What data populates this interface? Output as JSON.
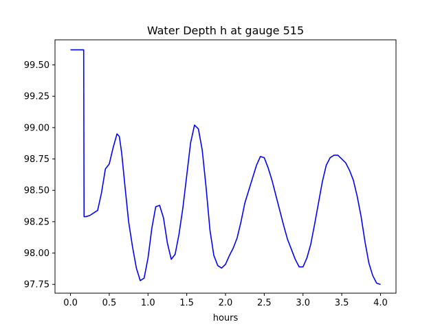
{
  "chart_data": {
    "type": "line",
    "title": "Water Depth h at gauge 515",
    "xlabel": "hours",
    "ylabel": "",
    "xlim": [
      -0.2,
      4.2
    ],
    "ylim": [
      97.68,
      99.7
    ],
    "grid": false,
    "x_ticks": [
      0.0,
      0.5,
      1.0,
      1.5,
      2.0,
      2.5,
      3.0,
      3.5,
      4.0
    ],
    "x_tick_labels": [
      "0.0",
      "0.5",
      "1.0",
      "1.5",
      "2.0",
      "2.5",
      "3.0",
      "3.5",
      "4.0"
    ],
    "y_ticks": [
      97.75,
      98.0,
      98.25,
      98.5,
      98.75,
      99.0,
      99.25,
      99.5
    ],
    "y_tick_labels": [
      "97.75",
      "98.00",
      "98.25",
      "98.50",
      "98.75",
      "99.00",
      "99.25",
      "99.50"
    ],
    "series": [
      {
        "color": "#0000ff",
        "x": [
          0.0,
          0.17,
          0.175,
          0.2,
          0.25,
          0.3,
          0.35,
          0.4,
          0.45,
          0.5,
          0.55,
          0.6,
          0.63,
          0.66,
          0.7,
          0.75,
          0.8,
          0.85,
          0.9,
          0.95,
          1.0,
          1.05,
          1.1,
          1.15,
          1.2,
          1.25,
          1.3,
          1.35,
          1.4,
          1.45,
          1.5,
          1.55,
          1.6,
          1.65,
          1.7,
          1.75,
          1.8,
          1.85,
          1.9,
          1.95,
          2.0,
          2.05,
          2.1,
          2.15,
          2.2,
          2.25,
          2.3,
          2.35,
          2.4,
          2.45,
          2.5,
          2.55,
          2.6,
          2.65,
          2.7,
          2.75,
          2.8,
          2.85,
          2.9,
          2.95,
          3.0,
          3.05,
          3.1,
          3.15,
          3.2,
          3.25,
          3.3,
          3.35,
          3.4,
          3.45,
          3.5,
          3.55,
          3.6,
          3.65,
          3.7,
          3.75,
          3.8,
          3.85,
          3.9,
          3.95,
          4.0
        ],
        "y": [
          99.62,
          99.62,
          98.29,
          98.29,
          98.3,
          98.32,
          98.34,
          98.48,
          98.67,
          98.71,
          98.84,
          98.95,
          98.93,
          98.8,
          98.55,
          98.25,
          98.05,
          97.88,
          97.78,
          97.8,
          97.96,
          98.2,
          98.37,
          98.38,
          98.28,
          98.08,
          97.95,
          97.99,
          98.15,
          98.36,
          98.62,
          98.88,
          99.02,
          98.99,
          98.82,
          98.52,
          98.18,
          97.98,
          97.9,
          97.88,
          97.91,
          97.98,
          98.04,
          98.12,
          98.25,
          98.4,
          98.5,
          98.6,
          98.7,
          98.77,
          98.76,
          98.68,
          98.58,
          98.46,
          98.34,
          98.22,
          98.11,
          98.03,
          97.95,
          97.89,
          97.89,
          97.96,
          98.07,
          98.23,
          98.4,
          98.57,
          98.7,
          98.76,
          98.78,
          98.78,
          98.75,
          98.72,
          98.66,
          98.58,
          98.45,
          98.29,
          98.09,
          97.92,
          97.82,
          97.76,
          97.75
        ]
      }
    ]
  }
}
